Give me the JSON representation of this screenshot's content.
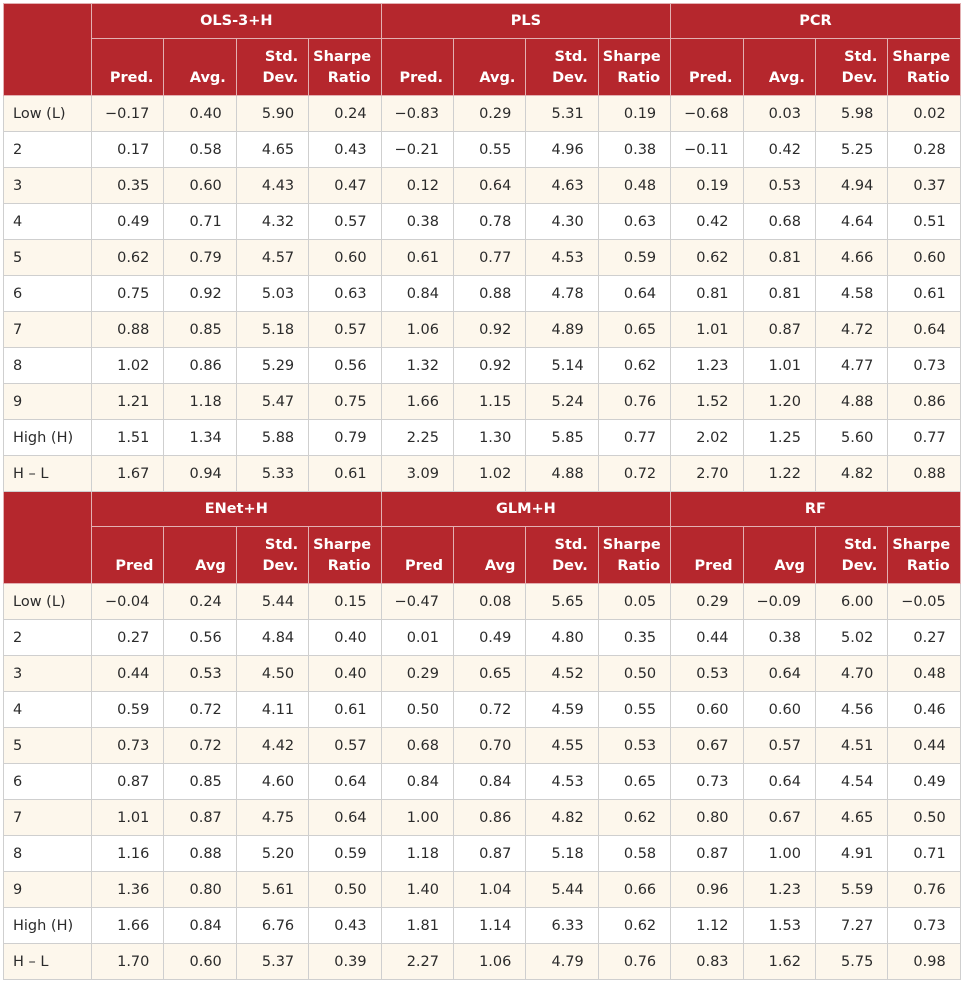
{
  "panels": [
    {
      "groups": [
        "OLS-3+H",
        "PLS",
        "PCR"
      ],
      "subheaders": [
        "Pred.",
        "Avg.",
        "Std.\nDev.",
        "Sharpe\nRatio"
      ],
      "rows": [
        {
          "label": "Low (L)",
          "values": [
            "−0.17",
            "0.40",
            "5.90",
            "0.24",
            "−0.83",
            "0.29",
            "5.31",
            "0.19",
            "−0.68",
            "0.03",
            "5.98",
            "0.02"
          ]
        },
        {
          "label": "2",
          "values": [
            "0.17",
            "0.58",
            "4.65",
            "0.43",
            "−0.21",
            "0.55",
            "4.96",
            "0.38",
            "−0.11",
            "0.42",
            "5.25",
            "0.28"
          ]
        },
        {
          "label": "3",
          "values": [
            "0.35",
            "0.60",
            "4.43",
            "0.47",
            "0.12",
            "0.64",
            "4.63",
            "0.48",
            "0.19",
            "0.53",
            "4.94",
            "0.37"
          ]
        },
        {
          "label": "4",
          "values": [
            "0.49",
            "0.71",
            "4.32",
            "0.57",
            "0.38",
            "0.78",
            "4.30",
            "0.63",
            "0.42",
            "0.68",
            "4.64",
            "0.51"
          ]
        },
        {
          "label": "5",
          "values": [
            "0.62",
            "0.79",
            "4.57",
            "0.60",
            "0.61",
            "0.77",
            "4.53",
            "0.59",
            "0.62",
            "0.81",
            "4.66",
            "0.60"
          ]
        },
        {
          "label": "6",
          "values": [
            "0.75",
            "0.92",
            "5.03",
            "0.63",
            "0.84",
            "0.88",
            "4.78",
            "0.64",
            "0.81",
            "0.81",
            "4.58",
            "0.61"
          ]
        },
        {
          "label": "7",
          "values": [
            "0.88",
            "0.85",
            "5.18",
            "0.57",
            "1.06",
            "0.92",
            "4.89",
            "0.65",
            "1.01",
            "0.87",
            "4.72",
            "0.64"
          ]
        },
        {
          "label": "8",
          "values": [
            "1.02",
            "0.86",
            "5.29",
            "0.56",
            "1.32",
            "0.92",
            "5.14",
            "0.62",
            "1.23",
            "1.01",
            "4.77",
            "0.73"
          ]
        },
        {
          "label": "9",
          "values": [
            "1.21",
            "1.18",
            "5.47",
            "0.75",
            "1.66",
            "1.15",
            "5.24",
            "0.76",
            "1.52",
            "1.20",
            "4.88",
            "0.86"
          ]
        },
        {
          "label": "High (H)",
          "values": [
            "1.51",
            "1.34",
            "5.88",
            "0.79",
            "2.25",
            "1.30",
            "5.85",
            "0.77",
            "2.02",
            "1.25",
            "5.60",
            "0.77"
          ]
        },
        {
          "label": "H – L",
          "values": [
            "1.67",
            "0.94",
            "5.33",
            "0.61",
            "3.09",
            "1.02",
            "4.88",
            "0.72",
            "2.70",
            "1.22",
            "4.82",
            "0.88"
          ]
        }
      ]
    },
    {
      "groups": [
        "ENet+H",
        "GLM+H",
        "RF"
      ],
      "subheaders": [
        "Pred",
        "Avg",
        "Std.\nDev.",
        "Sharpe\nRatio"
      ],
      "rows": [
        {
          "label": "Low (L)",
          "values": [
            "−0.04",
            "0.24",
            "5.44",
            "0.15",
            "−0.47",
            "0.08",
            "5.65",
            "0.05",
            "0.29",
            "−0.09",
            "6.00",
            "−0.05"
          ]
        },
        {
          "label": "2",
          "values": [
            "0.27",
            "0.56",
            "4.84",
            "0.40",
            "0.01",
            "0.49",
            "4.80",
            "0.35",
            "0.44",
            "0.38",
            "5.02",
            "0.27"
          ]
        },
        {
          "label": "3",
          "values": [
            "0.44",
            "0.53",
            "4.50",
            "0.40",
            "0.29",
            "0.65",
            "4.52",
            "0.50",
            "0.53",
            "0.64",
            "4.70",
            "0.48"
          ]
        },
        {
          "label": "4",
          "values": [
            "0.59",
            "0.72",
            "4.11",
            "0.61",
            "0.50",
            "0.72",
            "4.59",
            "0.55",
            "0.60",
            "0.60",
            "4.56",
            "0.46"
          ]
        },
        {
          "label": "5",
          "values": [
            "0.73",
            "0.72",
            "4.42",
            "0.57",
            "0.68",
            "0.70",
            "4.55",
            "0.53",
            "0.67",
            "0.57",
            "4.51",
            "0.44"
          ]
        },
        {
          "label": "6",
          "values": [
            "0.87",
            "0.85",
            "4.60",
            "0.64",
            "0.84",
            "0.84",
            "4.53",
            "0.65",
            "0.73",
            "0.64",
            "4.54",
            "0.49"
          ]
        },
        {
          "label": "7",
          "values": [
            "1.01",
            "0.87",
            "4.75",
            "0.64",
            "1.00",
            "0.86",
            "4.82",
            "0.62",
            "0.80",
            "0.67",
            "4.65",
            "0.50"
          ]
        },
        {
          "label": "8",
          "values": [
            "1.16",
            "0.88",
            "5.20",
            "0.59",
            "1.18",
            "0.87",
            "5.18",
            "0.58",
            "0.87",
            "1.00",
            "4.91",
            "0.71"
          ]
        },
        {
          "label": "9",
          "values": [
            "1.36",
            "0.80",
            "5.61",
            "0.50",
            "1.40",
            "1.04",
            "5.44",
            "0.66",
            "0.96",
            "1.23",
            "5.59",
            "0.76"
          ]
        },
        {
          "label": "High (H)",
          "values": [
            "1.66",
            "0.84",
            "6.76",
            "0.43",
            "1.81",
            "1.14",
            "6.33",
            "0.62",
            "1.12",
            "1.53",
            "7.27",
            "0.73"
          ]
        },
        {
          "label": "H – L",
          "values": [
            "1.70",
            "0.60",
            "5.37",
            "0.39",
            "2.27",
            "1.06",
            "4.79",
            "0.76",
            "0.83",
            "1.62",
            "5.75",
            "0.98"
          ]
        }
      ]
    }
  ],
  "colors": {
    "header_bg": "#b5272d",
    "header_text": "#ffffff",
    "stripe": "#fdf7ec"
  }
}
